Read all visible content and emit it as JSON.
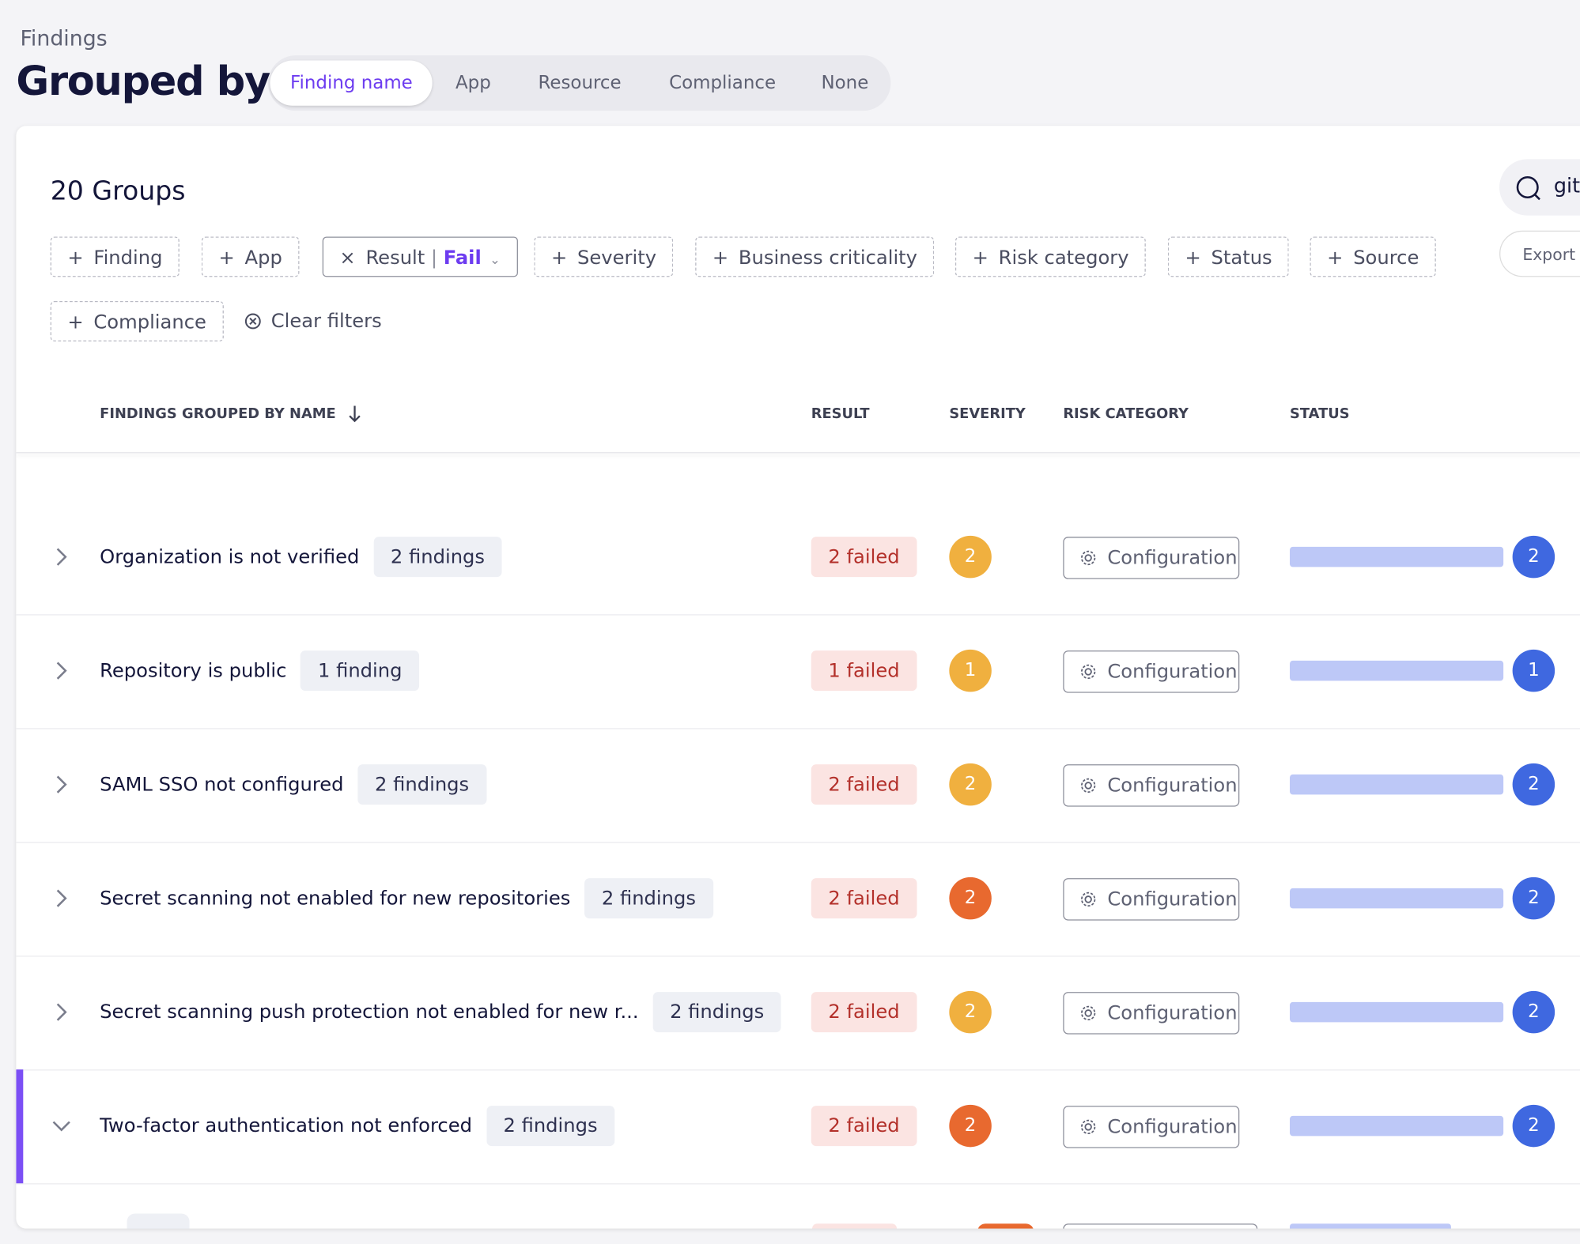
{
  "header": {
    "breadcrumb": "Findings",
    "title": "Grouped by",
    "tabs": [
      "Finding name",
      "App",
      "Resource",
      "Compliance",
      "None"
    ],
    "active_tab": 0
  },
  "toolbar": {
    "groups_count": "20 Groups",
    "search": "git",
    "export": "Export",
    "filters": [
      {
        "icon": "+",
        "label": "Finding"
      },
      {
        "icon": "+",
        "label": "App"
      },
      {
        "icon": "×",
        "label": "Result",
        "value": "Fail"
      },
      {
        "icon": "+",
        "label": "Severity"
      },
      {
        "icon": "+",
        "label": "Business criticality"
      },
      {
        "icon": "+",
        "label": "Risk category"
      },
      {
        "icon": "+",
        "label": "Status"
      },
      {
        "icon": "+",
        "label": "Source"
      },
      {
        "icon": "+",
        "label": "Compliance"
      }
    ],
    "clear": "Clear filters"
  },
  "table": {
    "columns": [
      "FINDINGS GROUPED BY NAME",
      "RESULT",
      "SEVERITY",
      "RISK CATEGORY",
      "STATUS"
    ],
    "rows": [
      {
        "name": "Organization is not verified",
        "count": "2 findings",
        "result": "2 failed",
        "severity": "2",
        "severity_color": "#f0b03f",
        "risk": "Configuration",
        "status": "2",
        "expanded": false
      },
      {
        "name": "Repository is public",
        "count": "1 finding",
        "result": "1 failed",
        "severity": "1",
        "severity_color": "#f0b03f",
        "risk": "Configuration",
        "status": "1",
        "expanded": false
      },
      {
        "name": "SAML SSO not configured",
        "count": "2 findings",
        "result": "2 failed",
        "severity": "2",
        "severity_color": "#f0b03f",
        "risk": "Configuration",
        "status": "2",
        "expanded": false
      },
      {
        "name": "Secret scanning not enabled for new repositories",
        "count": "2 findings",
        "result": "2 failed",
        "severity": "2",
        "severity_color": "#e8692f",
        "risk": "Configuration",
        "status": "2",
        "expanded": false
      },
      {
        "name": "Secret scanning push protection not enabled for new r...",
        "count": "2 findings",
        "result": "2 failed",
        "severity": "2",
        "severity_color": "#f0b03f",
        "risk": "Configuration",
        "status": "2",
        "expanded": false
      },
      {
        "name": "Two-factor authentication not enforced",
        "count": "2 findings",
        "result": "2 failed",
        "severity": "2",
        "severity_color": "#e8692f",
        "risk": "Configuration",
        "status": "2",
        "expanded": true
      }
    ]
  }
}
